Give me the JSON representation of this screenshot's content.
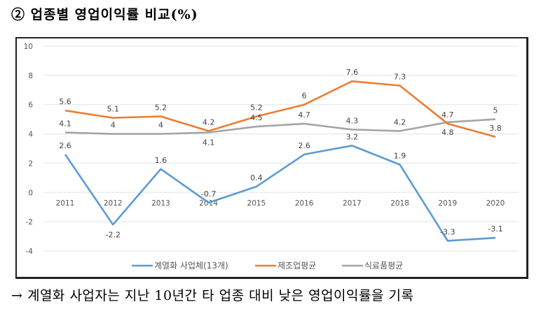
{
  "heading": "② 업종별 영업이익률 비교(%)",
  "footer": "→ 계열화 사업자는 지난 10년간 타 업종 대비 낮은 영업이익률을 기록",
  "chart_data": {
    "type": "line",
    "title": "",
    "xlabel": "",
    "ylabel": "",
    "x": [
      "2011",
      "2012",
      "2013",
      "2014",
      "2015",
      "2016",
      "2017",
      "2018",
      "2019",
      "2020"
    ],
    "ylim": [
      -4,
      10
    ],
    "yticks": [
      10,
      8,
      6,
      4,
      2,
      0,
      -2,
      -4
    ],
    "grid": true,
    "legend": "bottom",
    "series": [
      {
        "name": "계열화 사업체(13개)",
        "color": "#5B9BD5",
        "values": [
          2.6,
          -2.2,
          1.6,
          -0.7,
          0.4,
          2.6,
          3.2,
          1.9,
          -3.3,
          -3.1
        ],
        "label_pos": [
          "above",
          "below",
          "above",
          "above",
          "above",
          "above",
          "above",
          "above",
          "above",
          "above"
        ]
      },
      {
        "name": "제조업평균",
        "color": "#ED7D31",
        "values": [
          5.6,
          5.1,
          5.2,
          4.2,
          5.2,
          6,
          7.6,
          7.3,
          4.7,
          3.8
        ],
        "label_pos": [
          "above",
          "above",
          "above",
          "above",
          "above",
          "above",
          "above",
          "above",
          "above",
          "above"
        ]
      },
      {
        "name": "식료품평균",
        "color": "#A5A5A5",
        "values": [
          4.1,
          4,
          4,
          4.1,
          4.5,
          4.7,
          4.3,
          4.2,
          4.8,
          5
        ],
        "label_pos": [
          "above",
          "above",
          "above",
          "below",
          "above",
          "above",
          "above",
          "above",
          "below",
          "above"
        ]
      }
    ]
  }
}
